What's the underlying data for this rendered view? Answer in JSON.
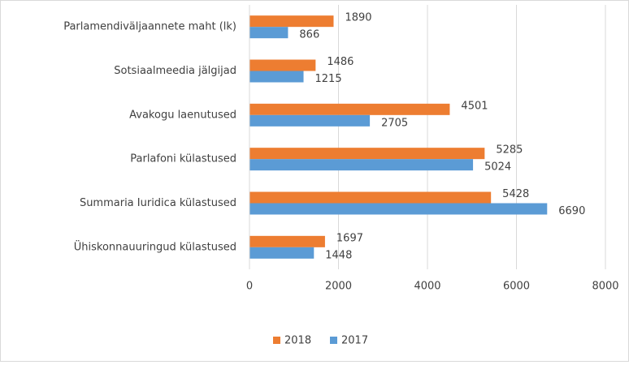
{
  "chart_data": {
    "type": "barh",
    "categories": [
      "Parlamendiväljaannete maht (lk)",
      "Sotsiaalmeedia jälgijad",
      "Avakogu laenutused",
      "Parlafoni külastused",
      "Summaria Iuridica külastused",
      "Ühiskonnauuringud külastused"
    ],
    "series": [
      {
        "name": "2018",
        "color": "#ed7d31",
        "values": [
          1890,
          1486,
          4501,
          5285,
          5428,
          1697
        ]
      },
      {
        "name": "2017",
        "color": "#5b9bd5",
        "values": [
          866,
          1215,
          2705,
          5024,
          6690,
          1448
        ]
      }
    ],
    "xlim": [
      0,
      8000
    ],
    "xticks": [
      0,
      2000,
      4000,
      6000,
      8000
    ],
    "grid": true,
    "legend": "bottom"
  }
}
